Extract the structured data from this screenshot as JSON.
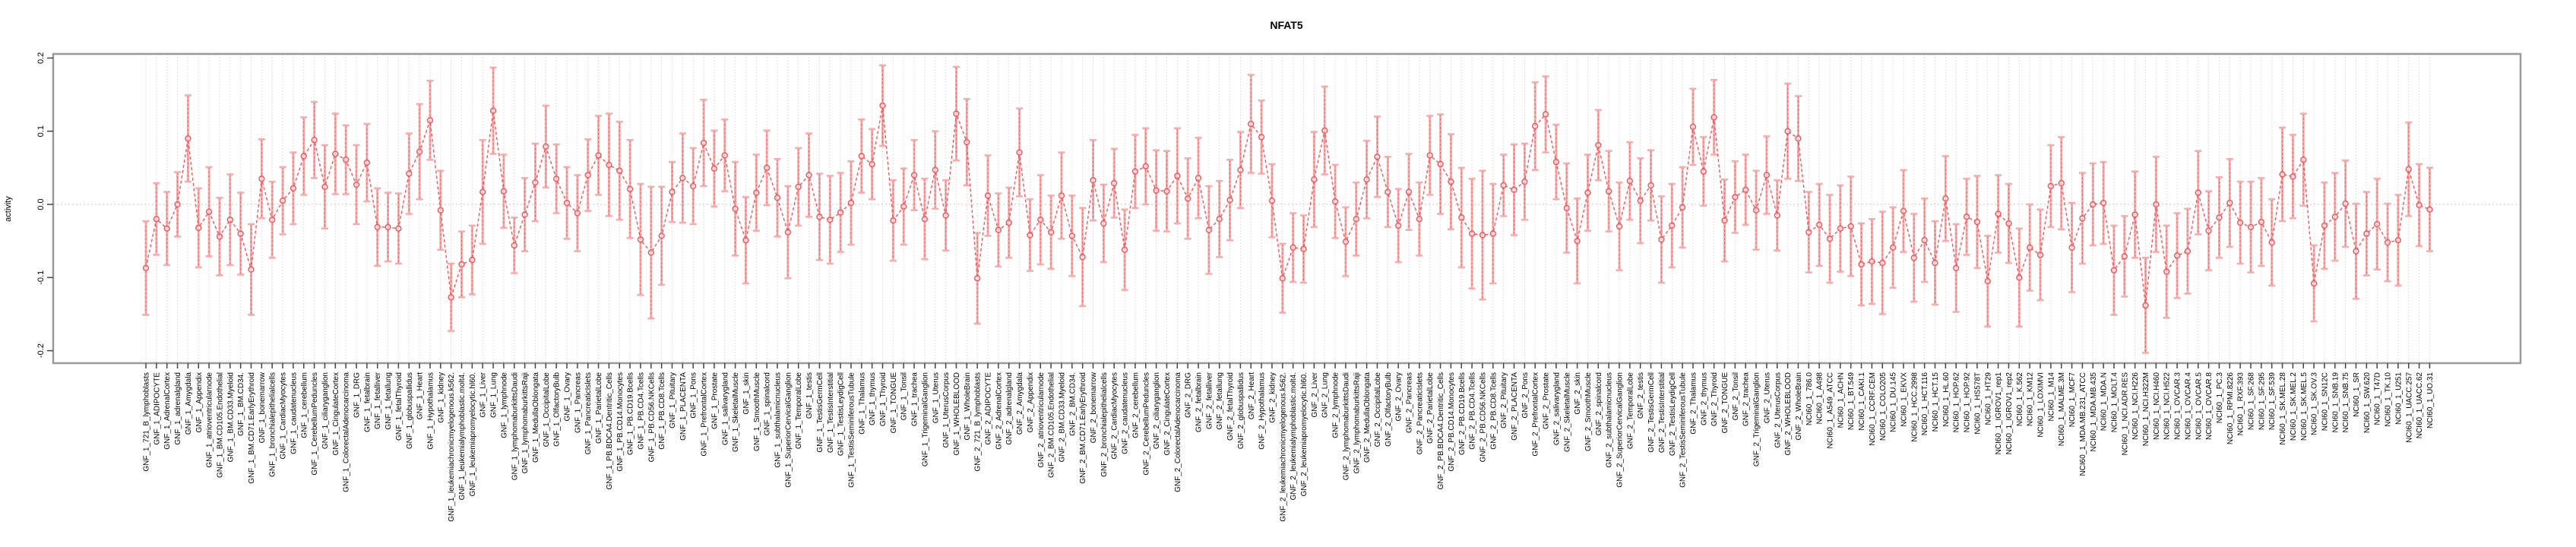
{
  "chart_data": {
    "type": "line",
    "title": "NFAT5",
    "xlabel": "",
    "ylabel": "activity",
    "ylim": [
      -0.217,
      0.206
    ],
    "yticks": [
      -0.2,
      -0.1,
      0.0,
      0.1,
      0.2
    ],
    "legend_position": "none",
    "grid": "vertical dotted per category, dotted zero line",
    "marker": "open-circle",
    "line_style": "dashed",
    "colors": {
      "series": "#f0575c",
      "error_bar": "#f7acac",
      "grid": "#d9d9d9",
      "zero_line": "#c4c4c4",
      "box_border": "#9a9a9a",
      "tick": "#444444"
    },
    "categories": [
      "GNF_1_721_B_lymphoblasts",
      "GNF_1_ADIPOCYTE",
      "GNF_1_AdrenalCortex",
      "GNF_1_adrenalgland",
      "GNF_1_Amygdala",
      "GNF_1_Appendix",
      "GNF_1_atrioventricularnode",
      "GNF_1_BM.CD105.Endothelial",
      "GNF_1_BM.CD33.Myeloid",
      "GNF_1_BM.CD34.",
      "GNF_1_BM.CD71.EarlyErythroid",
      "GNF_1_bonemarrow",
      "GNF_1_bronchialepithelialcells",
      "GNF_1_CardiacMyocytes",
      "GNF_1_caudatenucleus",
      "GNF_1_cerebellum",
      "GNF_1_CerebellumPeduncles",
      "GNF_1_ciliaryganglion",
      "GNF_1_CingulateCortex",
      "GNF_1_ColorectalAdenocarcinoma",
      "GNF_1_DRG",
      "GNF_1_fetalbrain",
      "GNF_1_fetalliver",
      "GNF_1_fetallung",
      "GNF_1_fetalThyroid",
      "GNF_1_globuspallidus",
      "GNF_1_Heart",
      "GNF_1_Hypothalamus",
      "GNF_1_kidney",
      "GNF_1_leukemiachronicmyelogenous.k562.",
      "GNF_1_leukemialymphoblastic.molt4.",
      "GNF_1_leukemiapromyelocytic.hl60.",
      "GNF_1_Liver",
      "GNF_1_Lung",
      "GNF_1_lymphnode",
      "GNF_1_lymphomaburkittsDaudi",
      "GNF_1_lymphomaburkittsRaji",
      "GNF_1_MedullaOblongata",
      "GNF_1_OccipitalLobe",
      "GNF_1_OlfactoryBulb",
      "GNF_1_Ovary",
      "GNF_1_Pancreas",
      "GNF_1_PancreaticIslets",
      "GNF_1_ParietalLobe",
      "GNF_1_PB.BDCA4.Dentritic_Cells",
      "GNF_1_PB.CD14.Monocytes",
      "GNF_1_PB.CD19.Bcells",
      "GNF_1_PB.CD4.Tcells",
      "GNF_1_PB.CD56.NKCells",
      "GNF_1_PB.CD8.Tcells",
      "GNF_1_Pituitary",
      "GNF_1_PLACENTA",
      "GNF_1_Pons",
      "GNF_1_PrefrontalCortex",
      "GNF_1_Prostate",
      "GNF_1_salivarygland",
      "GNF_1_SkeletalMuscle",
      "GNF_1_skin",
      "GNF_1_SmoothMuscle",
      "GNF_1_spinalcord",
      "GNF_1_subthalamicnucleus",
      "GNF_1_SuperiorCervicalGanglion",
      "GNF_1_TemporalLobe",
      "GNF_1_testis",
      "GNF_1_TestisGermCell",
      "GNF_1_TestisInterstitial",
      "GNF_1_TestisLeydigCell",
      "GNF_1_TestisSeminiferousTubule",
      "GNF_1_Thalamus",
      "GNF_1_thymus",
      "GNF_1_Thyroid",
      "GNF_1_TONGUE",
      "GNF_1_Tonsil",
      "GNF_1_trachea",
      "GNF_1_TrigeminalGanglion",
      "GNF_1_Uterus",
      "GNF_1_UterusCorpus",
      "GNF_1_WHOLEBLOOD",
      "GNF_1_WholeBrain",
      "GNF_2_721_B_lymphoblasts",
      "GNF_2_ADIPOCYTE",
      "GNF_2_AdrenalCortex",
      "GNF_2_adrenalgland",
      "GNF_2_Amygdala",
      "GNF_2_Appendix",
      "GNF_2_atrioventricularnode",
      "GNF_2_BM.CD105.Endothelial",
      "GNF_2_BM.CD33.Myeloid",
      "GNF_2_BM.CD34.",
      "GNF_2_BM.CD71.EarlyErythroid",
      "GNF_2_bonemarrow",
      "GNF_2_bronchialepithelialcells",
      "GNF_2_CardiacMyocytes",
      "GNF_2_caudatenucleus",
      "GNF_2_cerebellum",
      "GNF_2_CerebellumPeduncles",
      "GNF_2_ciliaryganglion",
      "GNF_2_CingulateCortex",
      "GNF_2_ColorectalAdenocarcinoma",
      "GNF_2_DRG",
      "GNF_2_fetalbrain",
      "GNF_2_fetalliver",
      "GNF_2_fetallung",
      "GNF_2_fetalThyroid",
      "GNF_2_globuspallidus",
      "GNF_2_Heart",
      "GNF_2_Hypothalamus",
      "GNF_2_kidney",
      "GNF_2_leukemiachronicmyelogenous.k562.",
      "GNF_2_leukemialymphoblastic.molt4.",
      "GNF_2_leukemiapromyelocytic.hl60.",
      "GNF_2_Liver",
      "GNF_2_Lung",
      "GNF_2_lymphnode",
      "GNF_2_lymphomaburkittsDaudi",
      "GNF_2_lymphomaburkittsRaji",
      "GNF_2_MedullaOblongata",
      "GNF_2_OccipitalLobe",
      "GNF_2_OlfactoryBulb",
      "GNF_2_Ovary",
      "GNF_2_Pancreas",
      "GNF_2_PancreaticIslets",
      "GNF_2_ParietalLobe",
      "GNF_2_PB.BDCA4.Dentritic_Cells",
      "GNF_2_PB.CD14.Monocytes",
      "GNF_2_PB.CD19.Bcells",
      "GNF_2_PB.CD4.Tcells",
      "GNF_2_PB.CD56.NKCells",
      "GNF_2_PB.CD8.Tcells",
      "GNF_2_Pituitary",
      "GNF_2_PLACENTA",
      "GNF_2_Pons",
      "GNF_2_PrefrontalCortex",
      "GNF_2_Prostate",
      "GNF_2_salivarygland",
      "GNF_2_SkeletalMuscle",
      "GNF_2_skin",
      "GNF_2_SmoothMuscle",
      "GNF_2_spinalcord",
      "GNF_2_subthalamicnucleus",
      "GNF_2_SuperiorCervicalGanglion",
      "GNF_2_TemporalLobe",
      "GNF_2_testis",
      "GNF_2_TestisGermCell",
      "GNF_2_TestisInterstitial",
      "GNF_2_TestisLeydigCell",
      "GNF_2_TestisSeminiferousTubule",
      "GNF_2_Thalamus",
      "GNF_2_thymus",
      "GNF_2_Thyroid",
      "GNF_2_TONGUE",
      "GNF_2_Tonsil",
      "GNF_2_trachea",
      "GNF_2_TrigeminalGanglion",
      "GNF_2_Uterus",
      "GNF_2_UterusCorpus",
      "GNF_2_WHOLEBLOOD",
      "GNF_2_WholeBrain",
      "NCI60_1_786.0",
      "NCI60_1_A498",
      "NCI60_1_A549_ATCC",
      "NCI60_1_ACHN",
      "NCI60_1_BT.549",
      "NCI60_1_CAKI.1",
      "NCI60_1_CCRF.CEM",
      "NCI60_1_COLO205",
      "NCI60_1_DU.145",
      "NCI60_1_EKVX",
      "NCI60_1_HCC.2998",
      "NCI60_1_HCT.116",
      "NCI60_1_HCT.15",
      "NCI60_1_HL.60",
      "NCI60_1_HOP.62",
      "NCI60_1_HOP.92",
      "NCI60_1_HS578T",
      "NCI60_1_HT29",
      "NCI60_1_IGROV1_rep1",
      "NCI60_1_IGROV1_rep2",
      "NCI60_1_K.562",
      "NCI60_1_KM12",
      "NCI60_1_LOXIMVI",
      "NCI60_1_M14",
      "NCI60_1_MALME.3M",
      "NCI60_1_MCF7",
      "NCI60_1_MDA.MB.231_ATCC",
      "NCI60_1_MDA.MB.435",
      "NCI60_1_MDA.N",
      "NCI60_1_MOLT.4",
      "NCI60_1_NCI.ADR.RES",
      "NCI60_1_NCI.H226",
      "NCI60_1_NCI.H322M",
      "NCI60_1_NCI.H460",
      "NCI60_1_NCI.H522",
      "NCI60_1_OVCAR.3",
      "NCI60_1_OVCAR.4",
      "NCI60_1_OVCAR.5",
      "NCI60_1_OVCAR.8",
      "NCI60_1_PC.3",
      "NCI60_1_RPMI.8226",
      "NCI60_1_RXF.393",
      "NCI60_1_SF.268",
      "NCI60_1_SF.295",
      "NCI60_1_SF.539",
      "NCI60_1_SK.MEL.28",
      "NCI60_1_SK.MEL.2",
      "NCI60_1_SK.MEL.5",
      "NCI60_1_SK.OV.3",
      "NCI60_1_SN12C",
      "NCI60_1_SNB.19",
      "NCI60_1_SNB.75",
      "NCI60_1_SR",
      "NCI60_1_SW.620",
      "NCI60_1_T47D",
      "NCI60_1_TK.10",
      "NCI60_1_U251",
      "NCI60_1_UACC.257",
      "NCI60_1_UACC.62",
      "NCI60_1_UO.31"
    ],
    "values": [
      -0.087,
      -0.02,
      -0.033,
      0.0,
      0.09,
      -0.032,
      -0.01,
      -0.044,
      -0.021,
      -0.04,
      -0.089,
      0.035,
      -0.021,
      0.005,
      0.022,
      0.066,
      0.088,
      0.024,
      0.069,
      0.061,
      0.027,
      0.057,
      -0.031,
      -0.031,
      -0.033,
      0.042,
      0.072,
      0.115,
      -0.008,
      -0.127,
      -0.082,
      -0.076,
      0.017,
      0.128,
      0.018,
      -0.056,
      -0.014,
      0.03,
      0.079,
      0.035,
      0.002,
      -0.012,
      0.04,
      0.067,
      0.054,
      0.046,
      0.021,
      -0.048,
      -0.066,
      -0.043,
      0.017,
      0.036,
      0.025,
      0.084,
      0.049,
      0.067,
      -0.006,
      -0.049,
      0.016,
      0.05,
      0.009,
      -0.038,
      0.024,
      0.04,
      -0.017,
      -0.021,
      -0.011,
      0.002,
      0.066,
      0.055,
      0.135,
      -0.022,
      -0.003,
      0.04,
      -0.02,
      0.047,
      -0.015,
      0.124,
      0.085,
      -0.101,
      0.012,
      -0.035,
      -0.025,
      0.071,
      -0.042,
      -0.021,
      -0.038,
      0.012,
      -0.043,
      -0.072,
      0.033,
      -0.026,
      0.029,
      -0.062,
      0.045,
      0.052,
      0.019,
      0.018,
      0.039,
      0.008,
      0.036,
      -0.035,
      -0.02,
      0.006,
      0.047,
      0.11,
      0.092,
      0.005,
      -0.101,
      -0.059,
      -0.061,
      0.034,
      0.101,
      0.004,
      -0.051,
      -0.02,
      0.034,
      0.065,
      0.017,
      -0.029,
      0.017,
      -0.02,
      0.067,
      0.055,
      0.031,
      -0.018,
      -0.04,
      -0.042,
      -0.04,
      0.026,
      0.02,
      0.031,
      0.107,
      0.123,
      0.058,
      -0.005,
      -0.05,
      0.016,
      0.081,
      0.018,
      -0.03,
      0.032,
      0.005,
      0.026,
      -0.048,
      -0.029,
      -0.004,
      0.106,
      0.045,
      0.119,
      -0.022,
      0.01,
      0.02,
      -0.008,
      0.04,
      -0.015,
      0.1,
      0.09,
      -0.038,
      -0.028,
      -0.047,
      -0.033,
      -0.03,
      -0.082,
      -0.078,
      -0.08,
      -0.059,
      -0.009,
      -0.073,
      -0.049,
      -0.08,
      0.008,
      -0.087,
      -0.017,
      -0.024,
      -0.105,
      -0.013,
      -0.026,
      -0.1,
      -0.059,
      -0.069,
      0.025,
      0.029,
      -0.059,
      -0.019,
      0.0,
      0.002,
      -0.09,
      -0.071,
      -0.014,
      -0.138,
      0.0,
      -0.092,
      -0.07,
      -0.064,
      0.016,
      -0.036,
      -0.018,
      0.002,
      -0.025,
      -0.031,
      -0.024,
      -0.052,
      0.041,
      0.038,
      0.061,
      -0.108,
      -0.029,
      -0.017,
      0.001,
      -0.064,
      -0.04,
      -0.027,
      -0.052,
      -0.049,
      0.048,
      -0.001,
      -0.007
    ],
    "errors": [
      0.064,
      0.049,
      0.05,
      0.044,
      0.059,
      0.054,
      0.061,
      0.053,
      0.062,
      0.056,
      0.062,
      0.054,
      0.052,
      0.046,
      0.049,
      0.053,
      0.052,
      0.057,
      0.055,
      0.047,
      0.054,
      0.053,
      0.053,
      0.047,
      0.048,
      0.055,
      0.065,
      0.054,
      0.054,
      0.046,
      0.045,
      0.047,
      0.071,
      0.059,
      0.05,
      0.038,
      0.05,
      0.053,
      0.056,
      0.047,
      0.049,
      0.052,
      0.049,
      0.054,
      0.07,
      0.067,
      0.067,
      0.076,
      0.09,
      0.067,
      0.041,
      0.061,
      0.052,
      0.059,
      0.052,
      0.049,
      0.064,
      0.059,
      0.052,
      0.051,
      0.053,
      0.063,
      0.053,
      0.057,
      0.059,
      0.06,
      0.054,
      0.057,
      0.05,
      0.048,
      0.055,
      0.055,
      0.052,
      0.048,
      0.055,
      0.053,
      0.048,
      0.064,
      0.059,
      0.062,
      0.055,
      0.05,
      0.048,
      0.06,
      0.049,
      0.061,
      0.05,
      0.059,
      0.055,
      0.067,
      0.055,
      0.053,
      0.047,
      0.055,
      0.05,
      0.052,
      0.055,
      0.055,
      0.065,
      0.055,
      0.055,
      0.06,
      0.052,
      0.055,
      0.052,
      0.067,
      0.05,
      0.05,
      0.047,
      0.047,
      0.046,
      0.065,
      0.06,
      0.05,
      0.047,
      0.05,
      0.053,
      0.055,
      0.048,
      0.05,
      0.052,
      0.05,
      0.054,
      0.068,
      0.065,
      0.068,
      0.075,
      0.088,
      0.068,
      0.042,
      0.062,
      0.052,
      0.06,
      0.052,
      0.051,
      0.061,
      0.058,
      0.052,
      0.048,
      0.055,
      0.06,
      0.053,
      0.058,
      0.048,
      0.059,
      0.057,
      0.055,
      0.052,
      0.047,
      0.051,
      0.056,
      0.049,
      0.048,
      0.054,
      0.053,
      0.048,
      0.065,
      0.058,
      0.055,
      0.056,
      0.06,
      0.059,
      0.068,
      0.056,
      0.058,
      0.07,
      0.055,
      0.056,
      0.06,
      0.057,
      0.057,
      0.058,
      0.06,
      0.052,
      0.063,
      0.062,
      0.053,
      0.054,
      0.067,
      0.059,
      0.062,
      0.056,
      0.063,
      0.061,
      0.062,
      0.056,
      0.056,
      0.061,
      0.055,
      0.059,
      0.065,
      0.065,
      0.063,
      0.058,
      0.058,
      0.057,
      0.054,
      0.055,
      0.06,
      0.056,
      0.062,
      0.06,
      0.059,
      0.064,
      0.057,
      0.063,
      0.052,
      0.059,
      0.06,
      0.059,
      0.065,
      0.057,
      0.062,
      0.053,
      0.062,
      0.064,
      0.056,
      0.057
    ]
  }
}
